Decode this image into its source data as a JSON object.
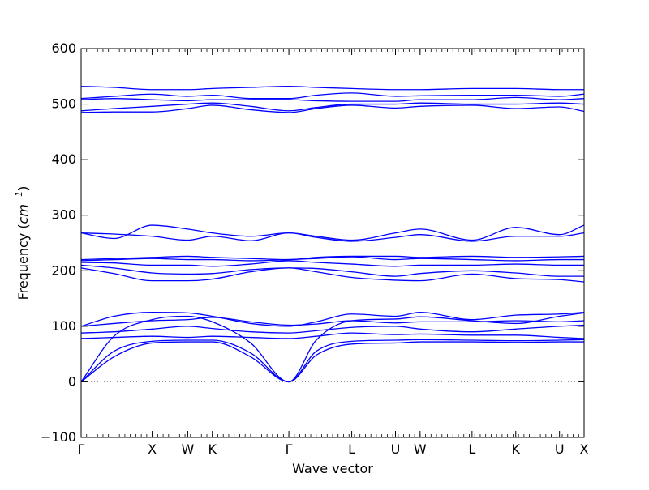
{
  "chart_data": {
    "type": "line",
    "xlabel": "Wave vector",
    "ylabel_prefix": "Frequency (",
    "ylabel_unit_base": "cm",
    "ylabel_unit_exp": "−1",
    "ylabel_suffix": ")",
    "ylim": [
      -100,
      600
    ],
    "yticks": [
      -100,
      0,
      100,
      200,
      300,
      400,
      500,
      600
    ],
    "ytick_labels": [
      "−100",
      "0",
      "100",
      "200",
      "300",
      "400",
      "500",
      "600"
    ],
    "xlim": [
      0,
      9.2
    ],
    "xticks": [
      {
        "pos": 0.0,
        "label": "Γ"
      },
      {
        "pos": 1.3,
        "label": "X"
      },
      {
        "pos": 1.95,
        "label": "W"
      },
      {
        "pos": 2.4,
        "label": "K"
      },
      {
        "pos": 3.8,
        "label": "Γ"
      },
      {
        "pos": 4.95,
        "label": "L"
      },
      {
        "pos": 5.75,
        "label": "U"
      },
      {
        "pos": 6.2,
        "label": "W"
      },
      {
        "pos": 7.15,
        "label": "L"
      },
      {
        "pos": 7.95,
        "label": "K"
      },
      {
        "pos": 8.75,
        "label": "U"
      },
      {
        "pos": 9.2,
        "label": "X"
      }
    ],
    "zero_line": true,
    "series_color": "#0000ff",
    "zero_line_color": "#808080",
    "bands": [
      {
        "x": [
          0,
          0.6,
          1.3,
          1.95,
          2.4,
          3.1,
          3.8,
          4.3,
          4.95,
          5.75,
          6.2,
          7.15,
          7.95,
          8.75,
          9.2
        ],
        "y": [
          0,
          45,
          70,
          72,
          72,
          45,
          0,
          48,
          68,
          70,
          72,
          72,
          71,
          72,
          72
        ]
      },
      {
        "x": [
          0,
          0.6,
          1.3,
          1.95,
          2.4,
          3.1,
          3.8,
          4.3,
          4.95,
          5.75,
          6.2,
          7.15,
          7.95,
          8.75,
          9.2
        ],
        "y": [
          0,
          55,
          73,
          75,
          75,
          52,
          0,
          55,
          73,
          75,
          76,
          75,
          74,
          75,
          76
        ]
      },
      {
        "x": [
          0,
          0.6,
          1.3,
          1.95,
          2.4,
          3.1,
          3.8,
          4.3,
          4.95,
          5.75,
          6.2,
          7.15,
          7.95,
          8.75,
          9.2
        ],
        "y": [
          0,
          82,
          112,
          118,
          108,
          70,
          0,
          75,
          110,
          113,
          117,
          110,
          105,
          118,
          124
        ]
      },
      {
        "x": [
          0,
          0.6,
          1.3,
          1.95,
          2.4,
          3.1,
          3.8,
          4.3,
          4.95,
          5.75,
          6.2,
          7.15,
          7.95,
          8.75,
          9.2
        ],
        "y": [
          78,
          80,
          82,
          80,
          82,
          80,
          78,
          82,
          88,
          85,
          86,
          84,
          84,
          80,
          78
        ]
      },
      {
        "x": [
          0,
          0.6,
          1.3,
          1.95,
          2.4,
          3.1,
          3.8,
          4.3,
          4.95,
          5.75,
          6.2,
          7.15,
          7.95,
          8.75,
          9.2
        ],
        "y": [
          88,
          90,
          95,
          100,
          96,
          90,
          88,
          92,
          98,
          100,
          95,
          90,
          95,
          100,
          102
        ]
      },
      {
        "x": [
          0,
          0.6,
          1.3,
          1.95,
          2.4,
          3.1,
          3.8,
          4.3,
          4.95,
          5.75,
          6.2,
          7.15,
          7.95,
          8.75,
          9.2
        ],
        "y": [
          100,
          118,
          125,
          124,
          118,
          105,
          100,
          108,
          122,
          118,
          125,
          112,
          120,
          122,
          125
        ]
      },
      {
        "x": [
          0,
          0.6,
          1.3,
          1.95,
          2.4,
          3.1,
          3.8,
          4.3,
          4.95,
          5.75,
          6.2,
          7.15,
          7.95,
          8.75,
          9.2
        ],
        "y": [
          100,
          105,
          110,
          112,
          116,
          108,
          102,
          104,
          110,
          106,
          108,
          108,
          110,
          108,
          110
        ]
      },
      {
        "x": [
          0,
          0.6,
          1.3,
          1.95,
          2.4,
          3.1,
          3.8,
          4.3,
          4.95,
          5.75,
          6.2,
          7.15,
          7.95,
          8.75,
          9.2
        ],
        "y": [
          205,
          195,
          182,
          182,
          185,
          198,
          205,
          198,
          188,
          183,
          182,
          194,
          186,
          184,
          180
        ]
      },
      {
        "x": [
          0,
          0.6,
          1.3,
          1.95,
          2.4,
          3.1,
          3.8,
          4.3,
          4.95,
          5.75,
          6.2,
          7.15,
          7.95,
          8.75,
          9.2
        ],
        "y": [
          210,
          205,
          196,
          194,
          195,
          202,
          205,
          204,
          198,
          190,
          195,
          200,
          196,
          190,
          190
        ]
      },
      {
        "x": [
          0,
          0.6,
          1.3,
          1.95,
          2.4,
          3.1,
          3.8,
          4.3,
          4.95,
          5.75,
          6.2,
          7.15,
          7.95,
          8.75,
          9.2
        ],
        "y": [
          215,
          214,
          210,
          210,
          208,
          212,
          218,
          215,
          212,
          208,
          210,
          210,
          212,
          210,
          210
        ]
      },
      {
        "x": [
          0,
          0.6,
          1.3,
          1.95,
          2.4,
          3.1,
          3.8,
          4.3,
          4.95,
          5.75,
          6.2,
          7.15,
          7.95,
          8.75,
          9.2
        ],
        "y": [
          218,
          220,
          222,
          220,
          220,
          218,
          220,
          222,
          225,
          220,
          222,
          220,
          218,
          220,
          220
        ]
      },
      {
        "x": [
          0,
          0.6,
          1.3,
          1.95,
          2.4,
          3.1,
          3.8,
          4.3,
          4.95,
          5.75,
          6.2,
          7.15,
          7.95,
          8.75,
          9.2
        ],
        "y": [
          220,
          222,
          224,
          226,
          224,
          222,
          220,
          224,
          226,
          226,
          224,
          226,
          224,
          225,
          226
        ]
      },
      {
        "x": [
          0,
          0.6,
          1.3,
          1.95,
          2.4,
          3.1,
          3.8,
          4.3,
          4.95,
          5.75,
          6.2,
          7.15,
          7.95,
          8.75,
          9.2
        ],
        "y": [
          268,
          258,
          282,
          275,
          268,
          262,
          268,
          262,
          255,
          268,
          275,
          255,
          278,
          265,
          282
        ]
      },
      {
        "x": [
          0,
          0.6,
          1.3,
          1.95,
          2.4,
          3.1,
          3.8,
          4.3,
          4.95,
          5.75,
          6.2,
          7.15,
          7.95,
          8.75,
          9.2
        ],
        "y": [
          268,
          266,
          262,
          255,
          262,
          254,
          268,
          260,
          253,
          260,
          265,
          253,
          262,
          262,
          268
        ]
      },
      {
        "x": [
          0,
          0.6,
          1.3,
          1.95,
          2.4,
          3.1,
          3.8,
          4.3,
          4.95,
          5.75,
          6.2,
          7.15,
          7.95,
          8.75,
          9.2
        ],
        "y": [
          485,
          486,
          486,
          492,
          498,
          490,
          485,
          492,
          498,
          493,
          496,
          498,
          492,
          495,
          487
        ]
      },
      {
        "x": [
          0,
          0.6,
          1.3,
          1.95,
          2.4,
          3.1,
          3.8,
          4.3,
          4.95,
          5.75,
          6.2,
          7.15,
          7.95,
          8.75,
          9.2
        ],
        "y": [
          488,
          492,
          496,
          500,
          502,
          496,
          488,
          494,
          500,
          500,
          502,
          500,
          500,
          502,
          500
        ]
      },
      {
        "x": [
          0,
          0.6,
          1.3,
          1.95,
          2.4,
          3.1,
          3.8,
          4.3,
          4.95,
          5.75,
          6.2,
          7.15,
          7.95,
          8.75,
          9.2
        ],
        "y": [
          508,
          510,
          508,
          506,
          508,
          508,
          508,
          506,
          505,
          505,
          508,
          508,
          512,
          508,
          510
        ]
      },
      {
        "x": [
          0,
          0.6,
          1.3,
          1.95,
          2.4,
          3.1,
          3.8,
          4.3,
          4.95,
          5.75,
          6.2,
          7.15,
          7.95,
          8.75,
          9.2
        ],
        "y": [
          510,
          514,
          518,
          514,
          516,
          510,
          510,
          516,
          520,
          514,
          515,
          516,
          516,
          514,
          518
        ]
      },
      {
        "x": [
          0,
          0.6,
          1.3,
          1.95,
          2.4,
          3.1,
          3.8,
          4.3,
          4.95,
          5.75,
          6.2,
          7.15,
          7.95,
          8.75,
          9.2
        ],
        "y": [
          532,
          530,
          526,
          526,
          528,
          530,
          532,
          530,
          528,
          526,
          526,
          528,
          528,
          526,
          526
        ]
      }
    ]
  }
}
